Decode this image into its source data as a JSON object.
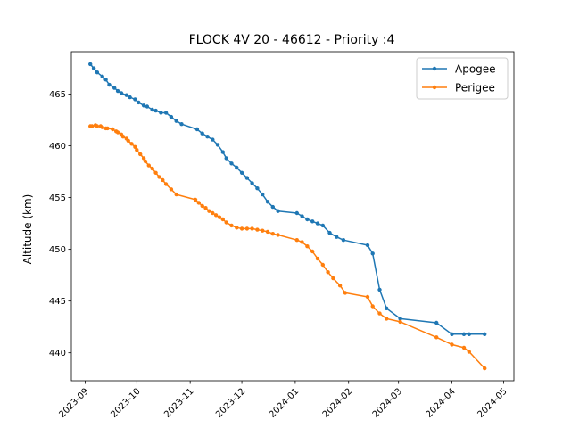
{
  "chart_data": {
    "type": "line",
    "title": "FLOCK 4V 20 - 46612 - Priority :4",
    "xlabel": "",
    "ylabel": "Altitude (km)",
    "xlim": [
      "2023-08-24",
      "2024-05-07"
    ],
    "ylim": [
      437.3,
      469.1
    ],
    "x_ticks": [
      "2023-09-01",
      "2023-10-01",
      "2023-11-01",
      "2023-12-01",
      "2024-01-01",
      "2024-02-01",
      "2024-03-01",
      "2024-04-01",
      "2024-05-01"
    ],
    "x_tick_labels": [
      "2023-09",
      "2023-10",
      "2023-11",
      "2023-12",
      "2024-01",
      "2024-02",
      "2024-03",
      "2024-04",
      "2024-05"
    ],
    "y_ticks": [
      440,
      445,
      450,
      455,
      460,
      465
    ],
    "y_tick_labels": [
      "440",
      "445",
      "450",
      "455",
      "460",
      "465"
    ],
    "grid": false,
    "legend_position": "top-right",
    "series": [
      {
        "name": "Apogee",
        "color": "#1f77b4",
        "x": [
          "2023-09-04",
          "2023-09-05",
          "2023-09-06",
          "2023-09-07",
          "2023-09-08",
          "2023-09-10",
          "2023-09-11",
          "2023-09-12",
          "2023-09-13",
          "2023-09-14",
          "2023-09-15",
          "2023-09-17",
          "2023-09-18",
          "2023-09-19",
          "2023-09-20",
          "2023-09-21",
          "2023-09-22",
          "2023-09-24",
          "2023-09-25",
          "2023-09-26",
          "2023-09-27",
          "2023-09-28",
          "2023-09-30",
          "2023-10-01",
          "2023-10-03",
          "2023-10-04",
          "2023-10-06",
          "2023-10-07",
          "2023-10-09",
          "2023-10-10",
          "2023-10-12",
          "2023-10-13",
          "2023-10-15",
          "2023-10-16",
          "2023-10-18",
          "2023-10-20",
          "2023-10-21",
          "2023-10-23",
          "2023-10-26",
          "2023-11-04",
          "2023-11-05",
          "2023-11-07",
          "2023-11-08",
          "2023-11-10",
          "2023-11-12",
          "2023-11-14",
          "2023-11-16",
          "2023-11-18",
          "2023-11-19",
          "2023-11-21",
          "2023-11-23",
          "2023-11-25",
          "2023-11-28",
          "2023-12-01",
          "2023-12-03",
          "2023-12-06",
          "2023-12-08",
          "2023-12-10",
          "2023-12-12",
          "2023-12-14",
          "2023-12-16",
          "2023-12-18",
          "2023-12-20",
          "2023-12-23",
          "2024-01-04",
          "2024-01-07",
          "2024-01-10",
          "2024-01-13",
          "2024-01-16",
          "2024-01-19",
          "2024-01-22",
          "2024-01-25",
          "2024-01-28",
          "2024-01-31",
          "2024-02-12",
          "2024-02-15",
          "2024-02-18",
          "2024-02-21",
          "2024-02-25",
          "2024-03-01",
          "2024-03-22",
          "2024-03-31",
          "2024-04-07",
          "2024-04-10",
          "2024-04-19"
        ],
        "y": [
          467.9,
          467.7,
          467.5,
          467.3,
          467.1,
          466.9,
          466.7,
          466.5,
          466.4,
          466.2,
          465.9,
          465.7,
          465.6,
          465.4,
          465.3,
          465.1,
          465.0,
          464.9,
          464.7,
          464.6,
          464.5,
          464.4,
          464.3,
          464.2,
          464.0,
          463.9,
          463.8,
          463.7,
          463.6,
          463.5,
          463.4,
          463.3,
          463.2,
          463.2,
          463.1,
          462.9,
          462.6,
          462.3,
          461.9,
          461.6,
          461.4,
          461.2,
          461.0,
          460.8,
          460.6,
          460.3,
          459.9,
          459.5,
          459.1,
          458.6,
          458.3,
          458.0,
          457.6,
          457.3,
          457.0,
          456.6,
          456.2,
          455.8,
          455.3,
          454.6,
          454.2,
          453.9,
          453.6,
          453.3,
          453.0,
          452.8,
          452.6,
          452.4,
          452.2,
          451.6,
          451.4,
          451.1,
          450.8,
          450.4,
          449.7,
          446.1,
          444.4,
          443.4,
          443.0,
          441.8,
          441.8,
          441.8,
          441.8,
          441.8,
          441.8
        ],
        "x_shown": [
          "2023-09-04",
          "2023-09-06",
          "2023-09-08",
          "2023-09-11",
          "2023-09-13",
          "2023-09-15",
          "2023-09-18",
          "2023-09-20",
          "2023-09-22",
          "2023-09-25",
          "2023-09-27",
          "2023-09-30",
          "2023-10-02",
          "2023-10-05",
          "2023-10-07",
          "2023-10-10",
          "2023-10-12",
          "2023-10-15",
          "2023-10-18",
          "2023-10-21",
          "2023-10-24",
          "2023-10-27",
          "2023-11-05",
          "2023-11-08",
          "2023-11-11",
          "2023-11-14",
          "2023-11-17",
          "2023-11-20",
          "2023-11-22",
          "2023-11-25",
          "2023-11-28",
          "2023-12-01",
          "2023-12-04",
          "2023-12-07",
          "2023-12-10",
          "2023-12-13",
          "2023-12-16",
          "2023-12-19",
          "2023-12-22",
          "2024-01-02",
          "2024-01-05",
          "2024-01-08",
          "2024-01-11",
          "2024-01-14",
          "2024-01-17",
          "2024-01-21",
          "2024-01-25",
          "2024-01-29",
          "2024-02-12",
          "2024-02-15",
          "2024-02-19",
          "2024-02-23",
          "2024-03-02",
          "2024-03-23",
          "2024-04-01",
          "2024-04-08",
          "2024-04-11",
          "2024-04-20"
        ],
        "y_shown": [
          467.9,
          467.5,
          467.1,
          466.7,
          466.4,
          465.9,
          465.6,
          465.3,
          465.1,
          464.9,
          464.7,
          464.5,
          464.2,
          463.9,
          463.8,
          463.5,
          463.4,
          463.2,
          463.2,
          462.8,
          462.4,
          462.1,
          461.6,
          461.2,
          460.9,
          460.6,
          460.1,
          459.4,
          458.8,
          458.3,
          457.9,
          457.4,
          456.9,
          456.4,
          455.9,
          455.3,
          454.6,
          454.1,
          453.7,
          453.5,
          453.2,
          452.9,
          452.7,
          452.5,
          452.3,
          451.6,
          451.2,
          450.9,
          450.4,
          449.6,
          446.1,
          444.3,
          443.3,
          442.9,
          441.8,
          441.8,
          441.8,
          441.8
        ]
      },
      {
        "name": "Perigee",
        "color": "#ff7f0e",
        "x_shown": [
          "2023-09-04",
          "2023-09-05",
          "2023-09-07",
          "2023-09-08",
          "2023-09-10",
          "2023-09-11",
          "2023-09-13",
          "2023-09-14",
          "2023-09-17",
          "2023-09-19",
          "2023-09-20",
          "2023-09-22",
          "2023-09-23",
          "2023-09-25",
          "2023-09-26",
          "2023-09-28",
          "2023-09-30",
          "2023-10-01",
          "2023-10-03",
          "2023-10-05",
          "2023-10-06",
          "2023-10-08",
          "2023-10-10",
          "2023-10-12",
          "2023-10-14",
          "2023-10-16",
          "2023-10-18",
          "2023-10-21",
          "2023-10-24",
          "2023-11-04",
          "2023-11-06",
          "2023-11-08",
          "2023-11-10",
          "2023-11-12",
          "2023-11-14",
          "2023-11-16",
          "2023-11-18",
          "2023-11-20",
          "2023-11-22",
          "2023-11-25",
          "2023-11-28",
          "2023-12-01",
          "2023-12-04",
          "2023-12-07",
          "2023-12-10",
          "2023-12-13",
          "2023-12-16",
          "2023-12-19",
          "2023-12-22",
          "2024-01-02",
          "2024-01-05",
          "2024-01-08",
          "2024-01-11",
          "2024-01-14",
          "2024-01-17",
          "2024-01-20",
          "2024-01-23",
          "2024-01-27",
          "2024-01-30",
          "2024-02-12",
          "2024-02-15",
          "2024-02-19",
          "2024-02-23",
          "2024-03-02",
          "2024-03-23",
          "2024-04-01",
          "2024-04-08",
          "2024-04-11",
          "2024-04-20"
        ],
        "y_shown": [
          461.9,
          461.9,
          462.0,
          461.9,
          461.9,
          461.8,
          461.7,
          461.7,
          461.6,
          461.4,
          461.3,
          461.1,
          460.9,
          460.7,
          460.5,
          460.2,
          459.9,
          459.6,
          459.2,
          458.8,
          458.5,
          458.1,
          457.8,
          457.4,
          457.0,
          456.7,
          456.3,
          455.8,
          455.3,
          454.8,
          454.5,
          454.2,
          454.0,
          453.7,
          453.5,
          453.3,
          453.1,
          452.9,
          452.6,
          452.3,
          452.1,
          452.0,
          452.0,
          452.0,
          451.9,
          451.8,
          451.7,
          451.5,
          451.4,
          450.9,
          450.7,
          450.3,
          449.8,
          449.1,
          448.5,
          447.8,
          447.2,
          446.5,
          445.8,
          445.4,
          444.5,
          443.8,
          443.3,
          443.0,
          441.5,
          440.8,
          440.5,
          440.1,
          438.5
        ]
      }
    ]
  }
}
